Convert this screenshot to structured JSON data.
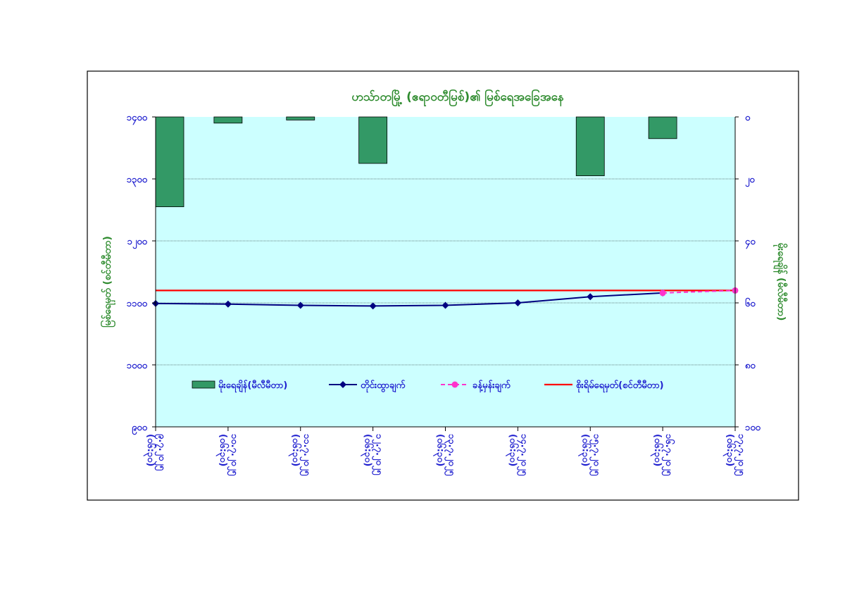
{
  "chart_data": {
    "type": "bar+line",
    "title": "ဟသ်ာတမြို့ (ဧရာဝတီမြစ်)၏ မြစ်ရေအခြေအနေ",
    "ylabel_left": "မြစ်ရေမှတ် (စင်တီမီတာ)",
    "ylabel_right": "မိုးရေချိန် (မီလီမီတာ)",
    "ylim_left": [
      900,
      1400
    ],
    "yticks_left": [
      "၁၄၀၀",
      "၁၃၀၀",
      "၁၂၀၀",
      "၁၁၀၀",
      "၁၀၀၀",
      "၉၀၀"
    ],
    "ylim_right": [
      100,
      0
    ],
    "yticks_right": [
      "၀",
      "၂၀",
      "၄၀",
      "၆၀",
      "၈၀",
      "၁၀၀"
    ],
    "grid": true,
    "legend_position": "inside-bottom",
    "categories": [
      [
        "၉.၇.၂၀၂၅",
        "(၀၆:၃၀)"
      ],
      [
        "၁၀.၇.၂၀၂၅",
        "(၀၆:၃၀)"
      ],
      [
        "၁၁.၇.၂၀၂၅",
        "(၀၆:၃၀)"
      ],
      [
        "၁၂.၇.၂၀၂၅",
        "(၀၆:၃၀)"
      ],
      [
        "၁၃.၇.၂၀၂၅",
        "(၀၆:၃၀)"
      ],
      [
        "၁၄.၇.၂၀၂၅",
        "(၀၆:၃၀)"
      ],
      [
        "၁၅.၇.၂၀၂၅",
        "(၀၆:၃၀)"
      ],
      [
        "၁၆.၇.၂၀၂၅",
        "(၀၆:၃၀)"
      ],
      [
        "၁၇.၇.၂၀၂၅",
        "(၀၆:၃၀)"
      ]
    ],
    "series": [
      {
        "name": "မိုးရေချိန်(မီလီမီတာ)",
        "kind": "bar",
        "axis": "right",
        "color": "#339966",
        "values": [
          29,
          2,
          1,
          15,
          0,
          0,
          19,
          7,
          0
        ]
      },
      {
        "name": "တိုင်းထွာချက်",
        "kind": "line",
        "axis": "left",
        "color": "#000080",
        "values": [
          1099,
          1098,
          1096,
          1095,
          1096,
          1100,
          1110,
          1116,
          null
        ]
      },
      {
        "name": "ခန့်မှန်းချက်",
        "kind": "dashed-line",
        "axis": "left",
        "color": "#ff33cc",
        "values": [
          null,
          null,
          null,
          null,
          null,
          null,
          null,
          1116,
          1120
        ]
      },
      {
        "name": "စိုးရိမ်ရေမှတ်(စင်တီမီတာ)",
        "kind": "hline",
        "axis": "left",
        "color": "#ff0000",
        "value": 1120
      }
    ]
  },
  "colors": {
    "plot_background": "#ccffff",
    "axis_text": "#1f1fcf",
    "title_text": "#2e8b2e"
  }
}
